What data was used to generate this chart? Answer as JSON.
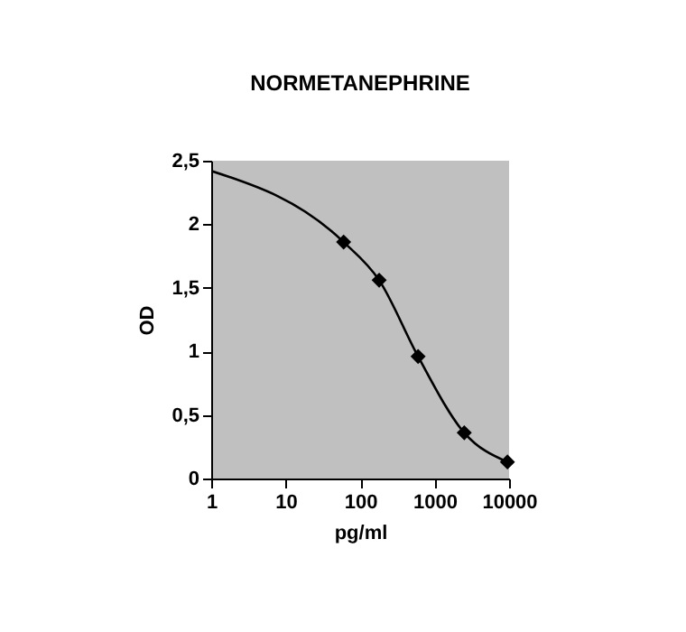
{
  "chart_data": {
    "type": "line",
    "title": "NORMETANEPHRINE",
    "xlabel": "pg/ml",
    "ylabel": "OD",
    "log": "x",
    "xlim": [
      1,
      10000
    ],
    "xticks": [
      1,
      10,
      100,
      1000,
      10000
    ],
    "ylim": [
      0,
      2.5
    ],
    "yticks": [
      0,
      {
        "value": 0.5,
        "label": "0,5"
      },
      1,
      {
        "value": 1.5,
        "label": "1,5"
      },
      2,
      {
        "value": 2.5,
        "label": "2,5"
      }
    ],
    "grid": false,
    "series": [
      {
        "color": "#000000",
        "marker": "none",
        "line_style": "solid",
        "x": [
          1,
          60,
          180,
          600,
          2500,
          9500
        ],
        "values": [
          2.42,
          1.86,
          1.56,
          0.96,
          0.36,
          0.13
        ]
      },
      {
        "type": "scatter",
        "color": "#000000",
        "marker": "diamond",
        "x": [
          60,
          180,
          600,
          2500,
          9500
        ],
        "values": [
          1.86,
          1.56,
          0.96,
          0.36,
          0.13
        ]
      }
    ]
  }
}
